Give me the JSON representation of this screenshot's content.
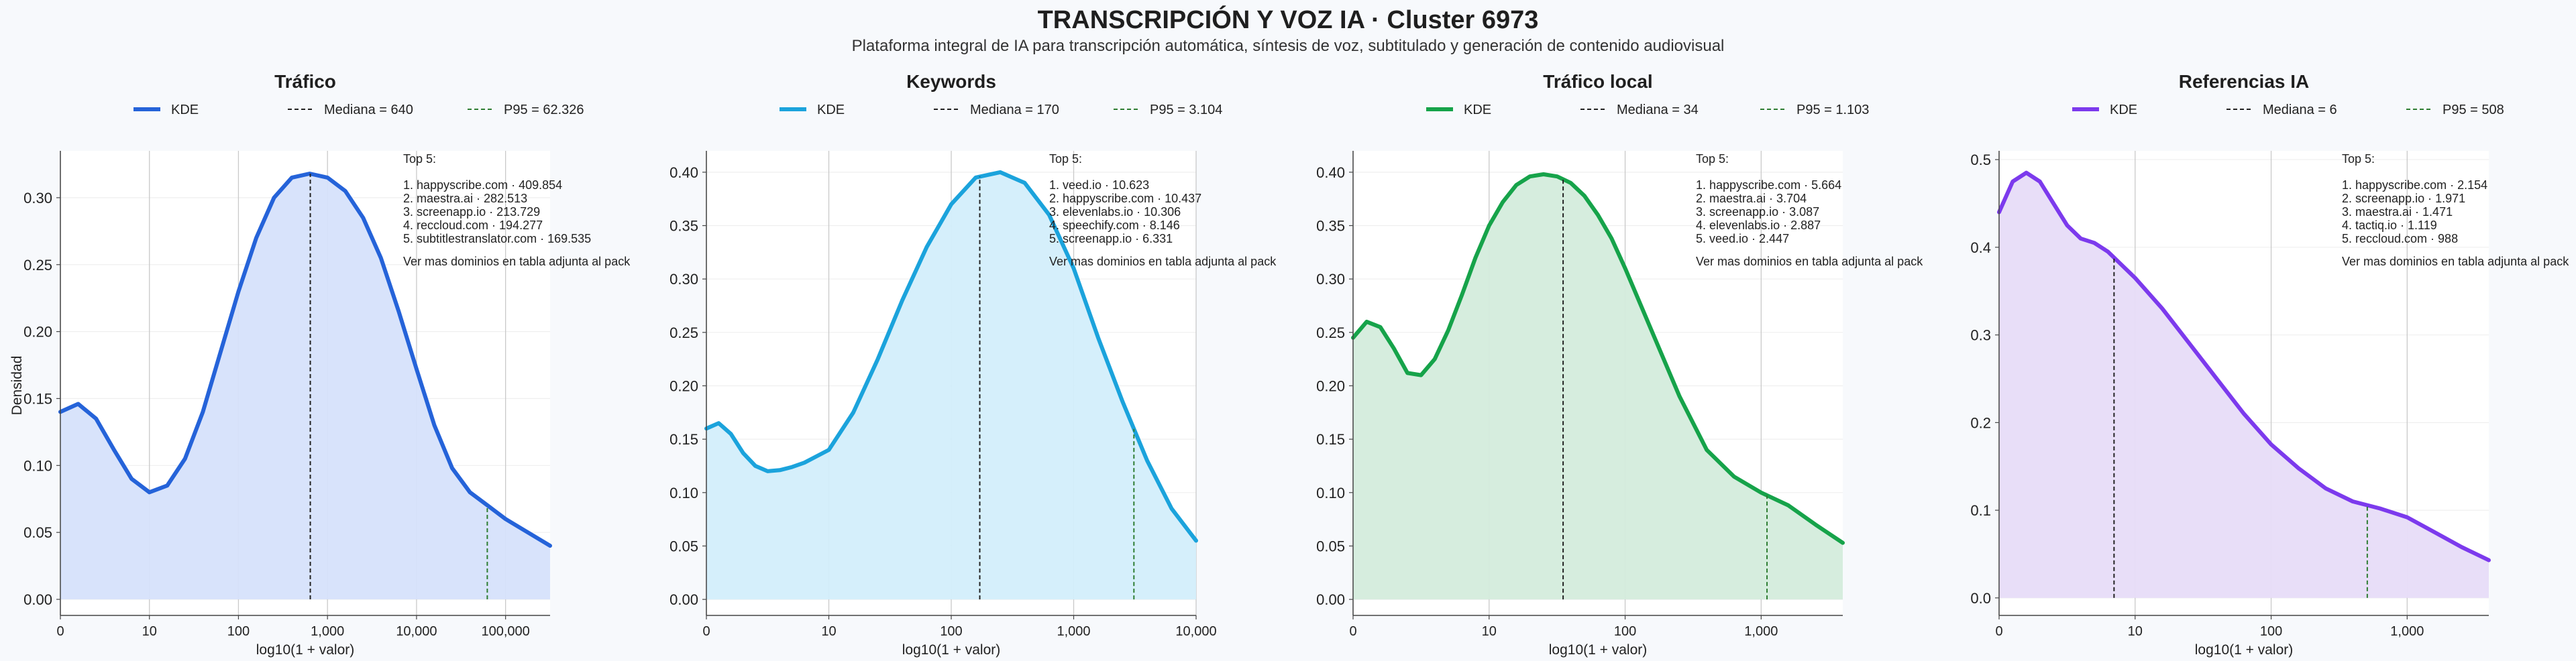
{
  "title": "TRANSCRIPCIÓN Y VOZ IA · Cluster 6973",
  "subtitle": "Plataforma integral de IA para transcripción automática, síntesis de voz, subtitulado y generación de contenido audiovisual",
  "ylabel_shared": "Densidad",
  "colors": {
    "median": "#222222",
    "p95": "#2e7d32"
  },
  "chart_data": [
    {
      "type": "area",
      "title": "Tráfico",
      "xlabel": "log10(1 + valor)",
      "color": "#2563d9",
      "fill": "#d6e2fb",
      "x_scale": "log10(1+x)",
      "xlim": [
        0,
        5.5
      ],
      "ylim": [
        -0.012,
        0.335
      ],
      "x_ticks": [
        "0",
        "10",
        "100",
        "1,000",
        "10,000",
        "100,000"
      ],
      "y_ticks": [
        "0.00",
        "0.05",
        "0.10",
        "0.15",
        "0.20",
        "0.25",
        "0.30"
      ],
      "legend": {
        "kde": "KDE",
        "median": "Mediana = 640",
        "p95": "P95 = 62.326"
      },
      "median": 640,
      "p95": 62326,
      "annotation": {
        "heading": "Top 5:",
        "lines": [
          "1. happyscribe.com · 409.854",
          "2. maestra.ai · 282.513",
          "3. screenapp.io · 213.729",
          "4. reccloud.com · 194.277",
          "5. subtitlestranslator.com · 169.535"
        ],
        "footer": "Ver mas dominios en tabla adjunta al pack"
      },
      "curve_x": [
        0,
        0.2,
        0.4,
        0.6,
        0.8,
        1.0,
        1.2,
        1.4,
        1.6,
        1.8,
        2.0,
        2.2,
        2.4,
        2.6,
        2.8,
        3.0,
        3.2,
        3.4,
        3.6,
        3.8,
        4.0,
        4.2,
        4.4,
        4.6,
        4.8,
        5.0,
        5.2,
        5.5
      ],
      "curve_y": [
        0.14,
        0.146,
        0.135,
        0.112,
        0.09,
        0.08,
        0.085,
        0.105,
        0.14,
        0.185,
        0.23,
        0.27,
        0.3,
        0.315,
        0.318,
        0.315,
        0.305,
        0.285,
        0.255,
        0.215,
        0.172,
        0.13,
        0.098,
        0.08,
        0.07,
        0.06,
        0.052,
        0.04
      ]
    },
    {
      "type": "area",
      "title": "Keywords",
      "xlabel": "log10(1 + valor)",
      "color": "#1ba3dc",
      "fill": "#d3eefb",
      "x_scale": "log10(1+x)",
      "xlim": [
        0,
        4
      ],
      "ylim": [
        -0.015,
        0.42
      ],
      "x_ticks": [
        "0",
        "10",
        "100",
        "1,000",
        "10,000"
      ],
      "y_ticks": [
        "0.00",
        "0.05",
        "0.10",
        "0.15",
        "0.20",
        "0.25",
        "0.30",
        "0.35",
        "0.40"
      ],
      "legend": {
        "kde": "KDE",
        "median": "Mediana = 170",
        "p95": "P95 = 3.104"
      },
      "median": 170,
      "p95": 3104,
      "annotation": {
        "heading": "Top 5:",
        "lines": [
          "1. veed.io · 10.623",
          "2. happyscribe.com · 10.437",
          "3. elevenlabs.io · 10.306",
          "4. speechify.com · 8.146",
          "5. screenapp.io · 6.331"
        ],
        "footer": "Ver mas dominios en tabla adjunta al pack"
      },
      "curve_x": [
        0,
        0.1,
        0.2,
        0.3,
        0.4,
        0.5,
        0.6,
        0.7,
        0.8,
        0.9,
        1.0,
        1.2,
        1.4,
        1.6,
        1.8,
        2.0,
        2.2,
        2.4,
        2.6,
        2.8,
        3.0,
        3.2,
        3.4,
        3.6,
        3.8,
        4.0
      ],
      "curve_y": [
        0.16,
        0.165,
        0.155,
        0.137,
        0.125,
        0.12,
        0.121,
        0.124,
        0.128,
        0.134,
        0.14,
        0.175,
        0.225,
        0.28,
        0.33,
        0.37,
        0.395,
        0.4,
        0.39,
        0.36,
        0.31,
        0.245,
        0.185,
        0.13,
        0.085,
        0.055
      ]
    },
    {
      "type": "area",
      "title": "Tráfico local",
      "xlabel": "log10(1 + valor)",
      "color": "#16a34a",
      "fill": "#d4ecdc",
      "x_scale": "log10(1+x)",
      "xlim": [
        0,
        3.6
      ],
      "ylim": [
        -0.015,
        0.42
      ],
      "x_ticks": [
        "0",
        "10",
        "100",
        "1,000"
      ],
      "y_ticks": [
        "0.00",
        "0.05",
        "0.10",
        "0.15",
        "0.20",
        "0.25",
        "0.30",
        "0.35",
        "0.40"
      ],
      "legend": {
        "kde": "KDE",
        "median": "Mediana = 34",
        "p95": "P95 = 1.103"
      },
      "median": 34,
      "p95": 1103,
      "annotation": {
        "heading": "Top 5:",
        "lines": [
          "1. happyscribe.com · 5.664",
          "2. maestra.ai · 3.704",
          "3. screenapp.io · 3.087",
          "4. elevenlabs.io · 2.887",
          "5. veed.io · 2.447"
        ],
        "footer": "Ver mas dominios en tabla adjunta al pack"
      },
      "curve_x": [
        0,
        0.1,
        0.2,
        0.3,
        0.4,
        0.5,
        0.6,
        0.7,
        0.8,
        0.9,
        1.0,
        1.1,
        1.2,
        1.3,
        1.4,
        1.5,
        1.6,
        1.7,
        1.8,
        1.9,
        2.0,
        2.2,
        2.4,
        2.6,
        2.8,
        3.0,
        3.2,
        3.4,
        3.6
      ],
      "curve_y": [
        0.245,
        0.26,
        0.255,
        0.235,
        0.212,
        0.21,
        0.225,
        0.252,
        0.285,
        0.32,
        0.35,
        0.372,
        0.388,
        0.396,
        0.398,
        0.396,
        0.39,
        0.378,
        0.36,
        0.338,
        0.31,
        0.25,
        0.19,
        0.14,
        0.115,
        0.1,
        0.088,
        0.07,
        0.053
      ]
    },
    {
      "type": "area",
      "title": "Referencias IA",
      "xlabel": "log10(1 + valor)",
      "color": "#7c3aed",
      "fill": "#e7dcf8",
      "x_scale": "log10(1+x)",
      "xlim": [
        0,
        3.6
      ],
      "ylim": [
        -0.02,
        0.51
      ],
      "x_ticks": [
        "0",
        "10",
        "100",
        "1,000"
      ],
      "y_ticks": [
        "0.0",
        "0.1",
        "0.2",
        "0.3",
        "0.4",
        "0.5"
      ],
      "legend": {
        "kde": "KDE",
        "median": "Mediana = 6",
        "p95": "P95 = 508"
      },
      "median": 6,
      "p95": 508,
      "annotation": {
        "heading": "Top 5:",
        "lines": [
          "1. happyscribe.com · 2.154",
          "2. screenapp.io · 1.971",
          "3. maestra.ai · 1.471",
          "4. tactiq.io · 1.119",
          "5. reccloud.com · 988"
        ],
        "footer": "Ver mas dominios en tabla adjunta al pack"
      },
      "curve_x": [
        0,
        0.1,
        0.2,
        0.3,
        0.4,
        0.5,
        0.6,
        0.7,
        0.8,
        0.9,
        1.0,
        1.2,
        1.4,
        1.6,
        1.8,
        2.0,
        2.2,
        2.4,
        2.6,
        2.8,
        3.0,
        3.2,
        3.4,
        3.6
      ],
      "curve_y": [
        0.44,
        0.475,
        0.485,
        0.475,
        0.45,
        0.425,
        0.41,
        0.405,
        0.395,
        0.38,
        0.365,
        0.33,
        0.29,
        0.25,
        0.21,
        0.175,
        0.148,
        0.125,
        0.11,
        0.102,
        0.092,
        0.075,
        0.058,
        0.043
      ]
    }
  ]
}
